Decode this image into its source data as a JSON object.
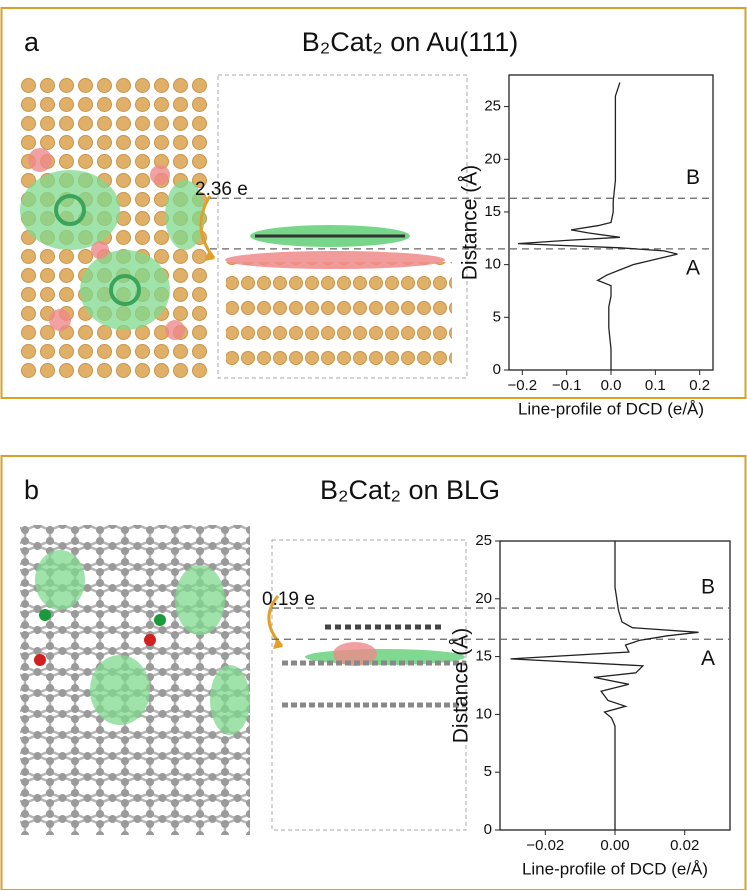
{
  "chart_data": [
    {
      "type": "line",
      "panel": "a",
      "title": "B₂Cat₂ on Au(111)",
      "charge_label": "2.36 e",
      "x_label": "Line-profile of DCD (e/Å)",
      "y_label": "Distance (Å)",
      "y": [
        0,
        2,
        4,
        6,
        7,
        8,
        8.5,
        9,
        9.5,
        10,
        10.5,
        11,
        11.3,
        11.6,
        12,
        12.3,
        12.6,
        13,
        13.3,
        13.7,
        14,
        15,
        16,
        18,
        20,
        22,
        24,
        26,
        27.3
      ],
      "values": [
        0,
        0,
        -0.005,
        -0.005,
        0,
        0,
        -0.03,
        -0.01,
        0.02,
        0.05,
        0.1,
        0.15,
        0.12,
        0.02,
        -0.21,
        -0.1,
        0.02,
        -0.05,
        -0.09,
        -0.03,
        0,
        0.005,
        0.005,
        0.01,
        0.01,
        0.01,
        0.01,
        0.01,
        0.02
      ],
      "color": "#222222",
      "xlim": [
        -0.23,
        0.23
      ],
      "xticks": [
        {
          "value": -0.2,
          "label": "−0.2"
        },
        {
          "value": -0.1,
          "label": "−0.1"
        },
        {
          "value": 0,
          "label": "0.0"
        },
        0.1,
        0.2
      ],
      "ylim": [
        0,
        28
      ],
      "yticks": [
        0,
        5,
        10,
        15,
        20,
        25
      ],
      "annotations": [
        {
          "text": "B",
          "y": 16.3
        },
        {
          "text": "A",
          "y": 11.5
        }
      ]
    },
    {
      "type": "line",
      "panel": "b",
      "title": "B₂Cat₂ on BLG",
      "charge_label": "0.19 e",
      "x_label": "Line-profile of DCD (e/Å)",
      "y_label": "Distance (Å)",
      "y": [
        0,
        3,
        6,
        9,
        9.7,
        10.2,
        10.7,
        11.2,
        12,
        12.6,
        13.2,
        13.6,
        14.2,
        14.8,
        15.4,
        16,
        16.4,
        16.8,
        17.1,
        17.5,
        18,
        19,
        21,
        25
      ],
      "values": [
        0,
        0,
        0,
        0,
        -0.001,
        -0.003,
        0.003,
        -0.002,
        -0.004,
        0.004,
        -0.006,
        0.006,
        0.008,
        -0.03,
        0.004,
        0.003,
        0.007,
        0.015,
        0.024,
        0.005,
        0.002,
        0.001,
        0,
        0
      ],
      "color": "#222222",
      "xlim": [
        -0.033,
        0.033
      ],
      "xticks": [
        {
          "value": -0.02,
          "label": "−0.02"
        },
        {
          "value": 0,
          "label": "0.00"
        },
        0.02
      ],
      "ylim": [
        0,
        25
      ],
      "yticks": [
        0,
        5,
        10,
        15,
        20,
        25
      ],
      "annotations": [
        {
          "text": "B",
          "y": 19.2
        },
        {
          "text": "A",
          "y": 16.5
        }
      ]
    }
  ]
}
